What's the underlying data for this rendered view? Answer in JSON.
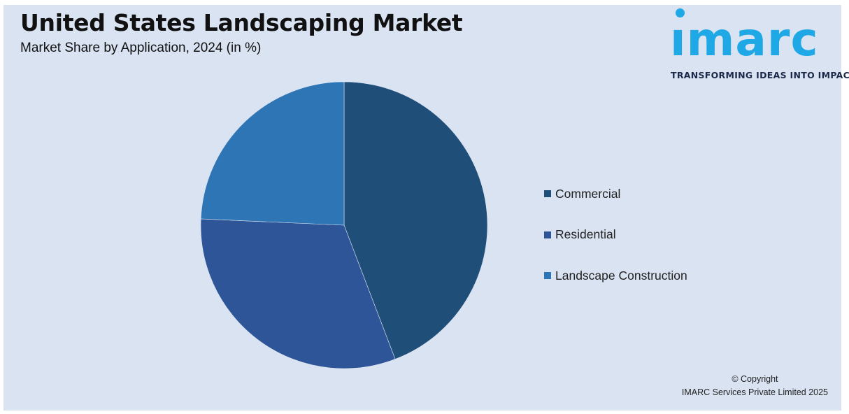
{
  "header": {
    "title": "United States Landscaping Market",
    "subtitle": "Market Share by Application, 2024 (in %)"
  },
  "logo": {
    "word": "ımarc",
    "tagline": "TRANSFORMING IDEAS INTO IMPACT",
    "color": "#1ea8e6"
  },
  "chart_data": {
    "type": "pie",
    "title": "United States Landscaping Market",
    "subtitle": "Market Share by Application, 2024 (in %)",
    "legend_position": "right",
    "categories": [
      "Commercial",
      "Residential",
      "Landscape Construction"
    ],
    "values": [
      44.2,
      31.5,
      24.3
    ],
    "colors": [
      "#1f4e79",
      "#2e5597",
      "#2e75b6"
    ]
  },
  "footer": {
    "copyright_line1": "© Copyright",
    "copyright_line2": "IMARC Services Private Limited 2025"
  }
}
